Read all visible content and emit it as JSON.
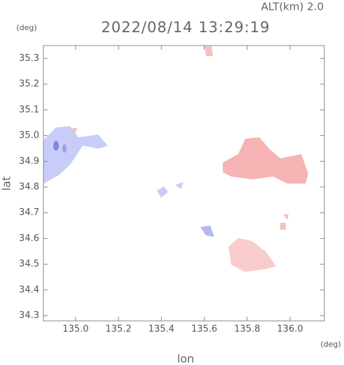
{
  "chart_data": {
    "type": "map",
    "title": "2022/08/14 13:29:19",
    "subtitle": "ALT(km) 2.0",
    "x_label": "lon",
    "y_label": "lat",
    "x_unit": "(deg)",
    "y_unit": "(deg)",
    "xlim": [
      134.85,
      136.16
    ],
    "ylim": [
      34.28,
      35.35
    ],
    "xticks": [
      {
        "value": 135,
        "label": "135.0"
      },
      135.2,
      135.4,
      135.6,
      135.8,
      {
        "value": 136,
        "label": "136.0"
      }
    ],
    "yticks": [
      34.3,
      34.4,
      34.5,
      34.6,
      34.7,
      34.8,
      34.9,
      {
        "value": 35,
        "label": "35.0"
      },
      35.1,
      35.2,
      35.3
    ]
  }
}
